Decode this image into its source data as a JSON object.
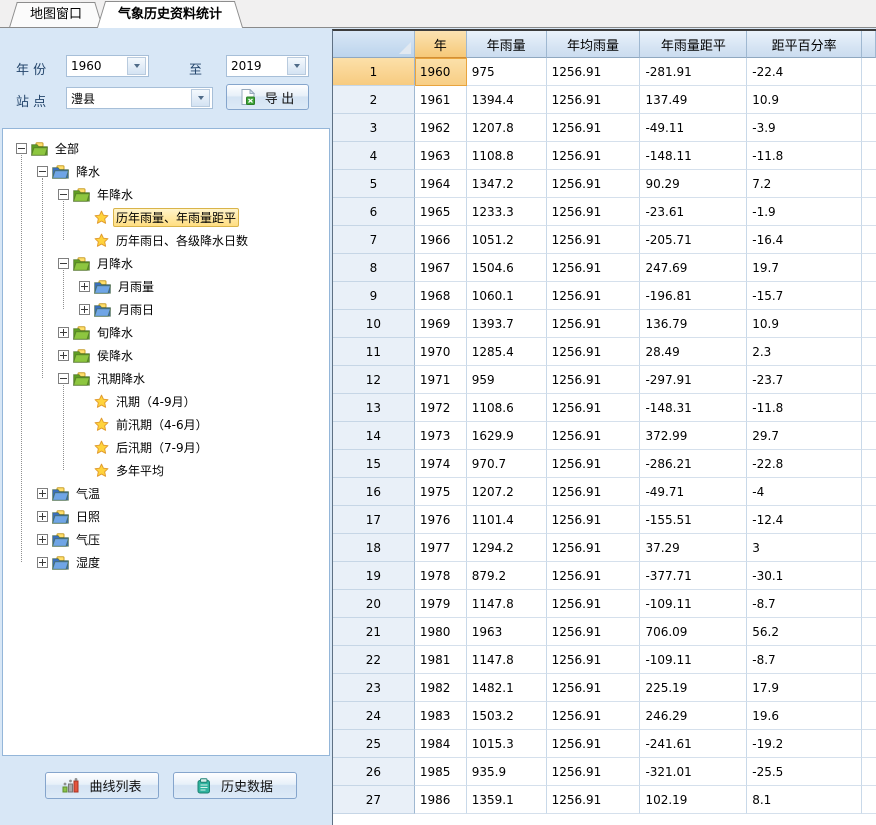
{
  "tabs": [
    {
      "label": "地图窗口",
      "active": false
    },
    {
      "label": "气象历史资料统计",
      "active": true
    }
  ],
  "filters": {
    "year_label": "年 份",
    "year_from": "1960",
    "to_label": "至",
    "year_to": "2019",
    "station_label": "站 点",
    "station": "澧县",
    "export_label": "导 出"
  },
  "tree": {
    "items": [
      {
        "label": "全部",
        "level": 0,
        "icon": "folder-green",
        "expand": "minus",
        "selected": false
      },
      {
        "label": "降水",
        "level": 1,
        "icon": "folder-blue",
        "expand": "minus",
        "selected": false
      },
      {
        "label": "年降水",
        "level": 2,
        "icon": "folder-green",
        "expand": "minus",
        "selected": false
      },
      {
        "label": "历年雨量、年雨量距平",
        "level": 3,
        "icon": "star",
        "expand": "",
        "selected": true
      },
      {
        "label": "历年雨日、各级降水日数",
        "level": 3,
        "icon": "star",
        "expand": "",
        "selected": false
      },
      {
        "label": "月降水",
        "level": 2,
        "icon": "folder-green",
        "expand": "minus",
        "selected": false
      },
      {
        "label": "月雨量",
        "level": 3,
        "icon": "folder-blue",
        "expand": "plus",
        "selected": false
      },
      {
        "label": "月雨日",
        "level": 3,
        "icon": "folder-blue",
        "expand": "plus",
        "selected": false
      },
      {
        "label": "旬降水",
        "level": 2,
        "icon": "folder-green",
        "expand": "plus",
        "selected": false
      },
      {
        "label": "侯降水",
        "level": 2,
        "icon": "folder-green",
        "expand": "plus",
        "selected": false
      },
      {
        "label": "汛期降水",
        "level": 2,
        "icon": "folder-green",
        "expand": "minus",
        "selected": false
      },
      {
        "label": "汛期（4-9月）",
        "level": 3,
        "icon": "star",
        "expand": "",
        "selected": false
      },
      {
        "label": "前汛期（4-6月）",
        "level": 3,
        "icon": "star",
        "expand": "",
        "selected": false
      },
      {
        "label": "后汛期（7-9月）",
        "level": 3,
        "icon": "star",
        "expand": "",
        "selected": false
      },
      {
        "label": "多年平均",
        "level": 3,
        "icon": "star",
        "expand": "",
        "selected": false
      },
      {
        "label": "气温",
        "level": 1,
        "icon": "folder-blue",
        "expand": "plus",
        "selected": false
      },
      {
        "label": "日照",
        "level": 1,
        "icon": "folder-blue",
        "expand": "plus",
        "selected": false
      },
      {
        "label": "气压",
        "level": 1,
        "icon": "folder-blue",
        "expand": "plus",
        "selected": false
      },
      {
        "label": "湿度",
        "level": 1,
        "icon": "folder-blue",
        "expand": "plus",
        "selected": false
      }
    ]
  },
  "actions": {
    "curve_list": "曲线列表",
    "history_data": "历史数据"
  },
  "table": {
    "columns": [
      "年",
      "年雨量",
      "年均雨量",
      "年雨量距平",
      "距平百分率"
    ],
    "selected_row": 1,
    "selected_column": "年",
    "rows": [
      [
        "1",
        "1960",
        "975",
        "1256.91",
        "-281.91",
        "-22.4"
      ],
      [
        "2",
        "1961",
        "1394.4",
        "1256.91",
        "137.49",
        "10.9"
      ],
      [
        "3",
        "1962",
        "1207.8",
        "1256.91",
        "-49.11",
        "-3.9"
      ],
      [
        "4",
        "1963",
        "1108.8",
        "1256.91",
        "-148.11",
        "-11.8"
      ],
      [
        "5",
        "1964",
        "1347.2",
        "1256.91",
        "90.29",
        "7.2"
      ],
      [
        "6",
        "1965",
        "1233.3",
        "1256.91",
        "-23.61",
        "-1.9"
      ],
      [
        "7",
        "1966",
        "1051.2",
        "1256.91",
        "-205.71",
        "-16.4"
      ],
      [
        "8",
        "1967",
        "1504.6",
        "1256.91",
        "247.69",
        "19.7"
      ],
      [
        "9",
        "1968",
        "1060.1",
        "1256.91",
        "-196.81",
        "-15.7"
      ],
      [
        "10",
        "1969",
        "1393.7",
        "1256.91",
        "136.79",
        "10.9"
      ],
      [
        "11",
        "1970",
        "1285.4",
        "1256.91",
        "28.49",
        "2.3"
      ],
      [
        "12",
        "1971",
        "959",
        "1256.91",
        "-297.91",
        "-23.7"
      ],
      [
        "13",
        "1972",
        "1108.6",
        "1256.91",
        "-148.31",
        "-11.8"
      ],
      [
        "14",
        "1973",
        "1629.9",
        "1256.91",
        "372.99",
        "29.7"
      ],
      [
        "15",
        "1974",
        "970.7",
        "1256.91",
        "-286.21",
        "-22.8"
      ],
      [
        "16",
        "1975",
        "1207.2",
        "1256.91",
        "-49.71",
        "-4"
      ],
      [
        "17",
        "1976",
        "1101.4",
        "1256.91",
        "-155.51",
        "-12.4"
      ],
      [
        "18",
        "1977",
        "1294.2",
        "1256.91",
        "37.29",
        "3"
      ],
      [
        "19",
        "1978",
        "879.2",
        "1256.91",
        "-377.71",
        "-30.1"
      ],
      [
        "20",
        "1979",
        "1147.8",
        "1256.91",
        "-109.11",
        "-8.7"
      ],
      [
        "21",
        "1980",
        "1963",
        "1256.91",
        "706.09",
        "56.2"
      ],
      [
        "22",
        "1981",
        "1147.8",
        "1256.91",
        "-109.11",
        "-8.7"
      ],
      [
        "23",
        "1982",
        "1482.1",
        "1256.91",
        "225.19",
        "17.9"
      ],
      [
        "24",
        "1983",
        "1503.2",
        "1256.91",
        "246.29",
        "19.6"
      ],
      [
        "25",
        "1984",
        "1015.3",
        "1256.91",
        "-241.61",
        "-19.2"
      ],
      [
        "26",
        "1985",
        "935.9",
        "1256.91",
        "-321.01",
        "-25.5"
      ],
      [
        "27",
        "1986",
        "1359.1",
        "1256.91",
        "102.19",
        "8.1"
      ]
    ]
  },
  "colors": {
    "panel_bg": "#D8E7F6",
    "header_bg_top": "#EAF2FB",
    "header_bg_bottom": "#CBDCEF",
    "selected_header_orange": "#F6C978",
    "selected_cell_orange": "#F8CE85",
    "tree_selected_yellow": "#FFDE82",
    "button_border_blue": "#85A5CC",
    "grid_line": "#C9D9E9"
  }
}
